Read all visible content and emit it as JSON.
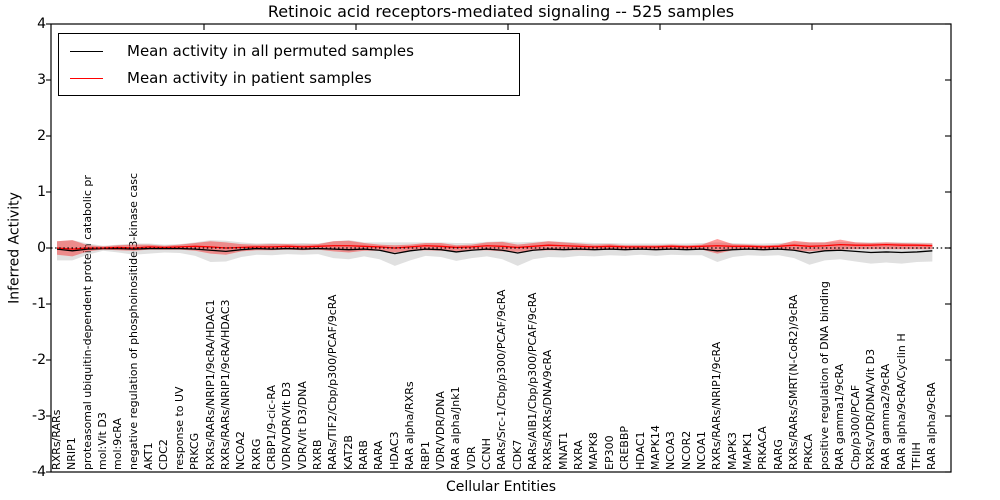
{
  "figure": {
    "title": "Retinoic acid receptors-mediated signaling -- 525 samples",
    "xlabel": "Cellular Entities",
    "ylabel": "Inferred Activity"
  },
  "legend": {
    "items": [
      {
        "label": "Mean activity in all permuted samples",
        "color": "#000000"
      },
      {
        "label": "Mean activity in patient samples",
        "color": "#ff0000"
      }
    ]
  },
  "axes": {
    "yticks": [
      "4",
      "3",
      "2",
      "1",
      "0",
      "-1",
      "-2",
      "-3",
      "-4"
    ],
    "ylim": [
      -4,
      4
    ],
    "grid": false
  },
  "chart_data": {
    "type": "line",
    "title": "Retinoic acid receptors-mediated signaling -- 525 samples",
    "xlabel": "Cellular Entities",
    "ylabel": "Inferred Activity",
    "ylim": [
      -4,
      4
    ],
    "legend_position": "upper left",
    "zero_line": "dotted",
    "categories": [
      "RXRs/RARs",
      "NRIP1",
      "proteasomal ubiquitin-dependent protein catabolic pr",
      "mol:Vit D3",
      "mol:9cRA",
      "negative regulation of phosphoinositide 3-kinase casc",
      "AKT1",
      "CDC2",
      "response to UV",
      "PRKCG",
      "RXRs/RARs/NRIP1/9cRA/HDAC1",
      "RXRs/RARs/NRIP1/9cRA/HDAC3",
      "NCOA2",
      "RXRG",
      "CRBP1/9-cic-RA",
      "VDR/VDR/Vit D3",
      "VDR/Vit D3/DNA",
      "RXRB",
      "RARs/TIF2/Cbp/p300/PCAF/9cRA",
      "KAT2B",
      "RARB",
      "RARA",
      "HDAC3",
      "RAR alpha/RXRs",
      "RBP1",
      "VDR/VDR/DNA",
      "RAR alpha/Jnk1",
      "VDR",
      "CCNH",
      "RARs/Src-1/Cbp/p300/PCAF/9cRA",
      "CDK7",
      "RARs/AIB1/Cbp/p300/PCAF/9cRA",
      "RXRs/RXRs/DNA/9cRA",
      "MNAT1",
      "RXRA",
      "MAPK8",
      "EP300",
      "CREBBP",
      "HDAC1",
      "MAPK14",
      "NCOA3",
      "NCOR2",
      "NCOA1",
      "RXRs/RARs/NRIP1/9cRA",
      "MAPK3",
      "MAPK1",
      "PRKACA",
      "RARG",
      "RXRs/RARs/SMRT(N-CoR2)/9cRA",
      "PRKCA",
      "positive regulation of DNA binding",
      "RAR gamma1/9cRA",
      "Cbp/p300/PCAF",
      "RXRs/VDR/DNA/Vit D3",
      "RAR gamma2/9cRA",
      "RAR alpha/9cRA/Cyclin H",
      "TFIIH",
      "RAR alpha/9cRA"
    ],
    "series": [
      {
        "name": "Mean activity in all permuted samples",
        "color": "#000000",
        "values": [
          -0.02,
          -0.05,
          -0.02,
          -0.01,
          -0.01,
          -0.02,
          -0.01,
          -0.01,
          -0.01,
          -0.02,
          -0.04,
          -0.06,
          -0.03,
          -0.01,
          -0.02,
          -0.01,
          -0.02,
          -0.01,
          -0.02,
          -0.03,
          -0.02,
          -0.04,
          -0.1,
          -0.05,
          -0.02,
          -0.03,
          -0.07,
          -0.04,
          -0.02,
          -0.04,
          -0.09,
          -0.04,
          -0.02,
          -0.03,
          -0.02,
          -0.03,
          -0.02,
          -0.03,
          -0.02,
          -0.03,
          -0.02,
          -0.03,
          -0.02,
          -0.05,
          -0.03,
          -0.02,
          -0.03,
          -0.02,
          -0.04,
          -0.09,
          -0.05,
          -0.04,
          -0.06,
          -0.08,
          -0.07,
          -0.08,
          -0.07,
          -0.05
        ]
      },
      {
        "name": "Mean activity in patient samples",
        "color": "#ff0000",
        "values": [
          0.0,
          -0.02,
          0.0,
          0.0,
          0.01,
          0.0,
          0.02,
          0.01,
          0.02,
          0.03,
          0.02,
          0.0,
          0.01,
          0.02,
          0.02,
          0.03,
          0.02,
          0.03,
          0.04,
          0.04,
          0.03,
          0.02,
          0.0,
          0.02,
          0.04,
          0.03,
          0.01,
          0.02,
          0.04,
          0.03,
          0.01,
          0.03,
          0.05,
          0.04,
          0.03,
          0.02,
          0.03,
          0.02,
          0.02,
          0.02,
          0.03,
          0.02,
          0.03,
          0.04,
          0.03,
          0.03,
          0.02,
          0.03,
          0.05,
          0.03,
          0.04,
          0.06,
          0.05,
          0.05,
          0.06,
          0.05,
          0.05,
          0.04
        ]
      }
    ],
    "bands": [
      {
        "name": "permuted samples range",
        "color": "#999999",
        "opacity": 0.3,
        "upper": [
          0.12,
          0.14,
          0.08,
          0.04,
          0.06,
          0.08,
          0.08,
          0.06,
          0.07,
          0.1,
          0.14,
          0.13,
          0.1,
          0.08,
          0.09,
          0.08,
          0.09,
          0.08,
          0.12,
          0.14,
          0.1,
          0.1,
          0.1,
          0.1,
          0.1,
          0.1,
          0.09,
          0.09,
          0.11,
          0.12,
          0.1,
          0.11,
          0.12,
          0.11,
          0.1,
          0.09,
          0.09,
          0.08,
          0.08,
          0.08,
          0.08,
          0.08,
          0.09,
          0.1,
          0.09,
          0.08,
          0.08,
          0.09,
          0.1,
          0.1,
          0.1,
          0.11,
          0.1,
          0.1,
          0.1,
          0.1,
          0.1,
          0.09
        ],
        "lower": [
          -0.22,
          -0.22,
          -0.12,
          -0.05,
          -0.08,
          -0.12,
          -0.1,
          -0.08,
          -0.09,
          -0.14,
          -0.25,
          -0.24,
          -0.16,
          -0.12,
          -0.13,
          -0.11,
          -0.12,
          -0.11,
          -0.18,
          -0.2,
          -0.15,
          -0.2,
          -0.32,
          -0.22,
          -0.14,
          -0.16,
          -0.23,
          -0.18,
          -0.15,
          -0.2,
          -0.32,
          -0.2,
          -0.16,
          -0.17,
          -0.14,
          -0.15,
          -0.13,
          -0.14,
          -0.12,
          -0.14,
          -0.12,
          -0.13,
          -0.13,
          -0.25,
          -0.16,
          -0.13,
          -0.14,
          -0.13,
          -0.18,
          -0.3,
          -0.22,
          -0.2,
          -0.24,
          -0.28,
          -0.26,
          -0.28,
          -0.25,
          -0.24
        ]
      },
      {
        "name": "patient samples range",
        "color": "#ff0000",
        "opacity": 0.38,
        "upper": [
          0.12,
          0.14,
          0.05,
          0.03,
          0.05,
          0.06,
          0.06,
          0.04,
          0.06,
          0.09,
          0.12,
          0.1,
          0.07,
          0.06,
          0.07,
          0.07,
          0.06,
          0.07,
          0.12,
          0.13,
          0.09,
          0.06,
          0.05,
          0.06,
          0.09,
          0.09,
          0.05,
          0.06,
          0.1,
          0.11,
          0.06,
          0.09,
          0.12,
          0.1,
          0.08,
          0.06,
          0.07,
          0.05,
          0.05,
          0.05,
          0.06,
          0.05,
          0.06,
          0.16,
          0.07,
          0.06,
          0.05,
          0.06,
          0.13,
          0.1,
          0.1,
          0.15,
          0.1,
          0.09,
          0.1,
          0.09,
          0.08,
          0.08
        ],
        "lower": [
          -0.12,
          -0.15,
          -0.06,
          -0.03,
          -0.04,
          -0.05,
          -0.03,
          -0.03,
          -0.03,
          -0.05,
          -0.1,
          -0.12,
          -0.06,
          -0.04,
          -0.04,
          -0.03,
          -0.04,
          -0.03,
          -0.06,
          -0.08,
          -0.05,
          -0.05,
          -0.08,
          -0.05,
          -0.04,
          -0.05,
          -0.06,
          -0.04,
          -0.04,
          -0.06,
          -0.07,
          -0.05,
          -0.04,
          -0.04,
          -0.04,
          -0.04,
          -0.03,
          -0.04,
          -0.03,
          -0.04,
          -0.03,
          -0.03,
          -0.03,
          -0.1,
          -0.04,
          -0.03,
          -0.04,
          -0.03,
          -0.05,
          -0.06,
          -0.04,
          -0.03,
          -0.02,
          -0.02,
          -0.02,
          -0.02,
          -0.02,
          -0.02
        ]
      }
    ]
  }
}
